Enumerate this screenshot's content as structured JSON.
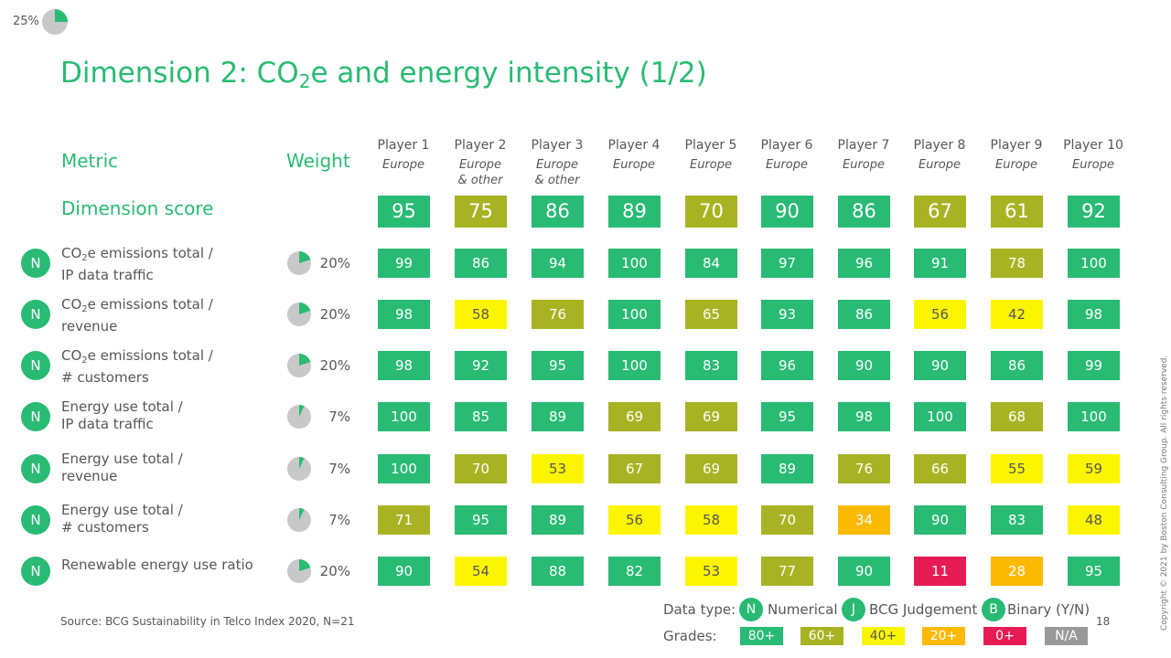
{
  "progress": {
    "label": "25%",
    "value": 0.25
  },
  "title": {
    "prefix": "Dimension 2: CO",
    "sub": "2",
    "suffix": "e and energy intensity (1/2)"
  },
  "headers": {
    "metric": "Metric",
    "weight": "Weight",
    "dimension_score": "Dimension score"
  },
  "players": [
    {
      "name": "Player 1",
      "region": "Europe"
    },
    {
      "name": "Player 2",
      "region": "Europe & other"
    },
    {
      "name": "Player 3",
      "region": "Europe & other"
    },
    {
      "name": "Player 4",
      "region": "Europe"
    },
    {
      "name": "Player 5",
      "region": "Europe"
    },
    {
      "name": "Player 6",
      "region": "Europe"
    },
    {
      "name": "Player 7",
      "region": "Europe"
    },
    {
      "name": "Player 8",
      "region": "Europe"
    },
    {
      "name": "Player 9",
      "region": "Europe"
    },
    {
      "name": "Player 10",
      "region": "Europe"
    }
  ],
  "dimension_scores": [
    "95",
    "75",
    "86",
    "89",
    "70",
    "90",
    "86",
    "67",
    "61",
    "92"
  ],
  "metrics": [
    {
      "type": "N",
      "line1_pre": "CO",
      "line1_sub": "2",
      "line1_post": "e emissions total /",
      "line2": "IP data traffic",
      "weight": "20%",
      "weight_value": 0.2,
      "scores": [
        "99",
        "86",
        "94",
        "100",
        "84",
        "97",
        "96",
        "91",
        "78",
        "100"
      ]
    },
    {
      "type": "N",
      "line1_pre": "CO",
      "line1_sub": "2",
      "line1_post": "e emissions total /",
      "line2": "revenue",
      "weight": "20%",
      "weight_value": 0.2,
      "scores": [
        "98",
        "58",
        "76",
        "100",
        "65",
        "93",
        "86",
        "56",
        "42",
        "98"
      ]
    },
    {
      "type": "N",
      "line1_pre": "CO",
      "line1_sub": "2",
      "line1_post": "e emissions total /",
      "line2": "# customers",
      "weight": "20%",
      "weight_value": 0.2,
      "scores": [
        "98",
        "92",
        "95",
        "100",
        "83",
        "96",
        "90",
        "90",
        "86",
        "99"
      ]
    },
    {
      "type": "N",
      "line1_pre": "Energy use total /",
      "line1_sub": "",
      "line1_post": "",
      "line2": "IP data traffic",
      "weight": "7%",
      "weight_value": 0.07,
      "scores": [
        "100",
        "85",
        "89",
        "69",
        "69",
        "95",
        "98",
        "100",
        "68",
        "100"
      ]
    },
    {
      "type": "N",
      "line1_pre": "Energy use total /",
      "line1_sub": "",
      "line1_post": "",
      "line2": "revenue",
      "weight": "7%",
      "weight_value": 0.07,
      "scores": [
        "100",
        "70",
        "53",
        "67",
        "69",
        "89",
        "76",
        "66",
        "55",
        "59"
      ]
    },
    {
      "type": "N",
      "line1_pre": "Energy use total /",
      "line1_sub": "",
      "line1_post": "",
      "line2": "# customers",
      "weight": "7%",
      "weight_value": 0.07,
      "scores": [
        "71",
        "95",
        "89",
        "56",
        "58",
        "70",
        "34",
        "90",
        "83",
        "48"
      ]
    },
    {
      "type": "N",
      "line1_pre": "Renewable energy use ratio",
      "line1_sub": "",
      "line1_post": "",
      "line2": "",
      "weight": "20%",
      "weight_value": 0.2,
      "scores": [
        "90",
        "54",
        "88",
        "82",
        "53",
        "77",
        "90",
        "11",
        "28",
        "95"
      ]
    }
  ],
  "source": "Source: BCG Sustainability in Telco Index 2020, N=21",
  "legend": {
    "data_type_label": "Data type:",
    "types": [
      {
        "badge": "N",
        "text": "Numerical"
      },
      {
        "badge": "J",
        "text": "BCG Judgement"
      },
      {
        "badge": "B",
        "text": "Binary (Y/N)"
      }
    ],
    "grades_label": "Grades:",
    "grades": [
      "80+",
      "60+",
      "40+",
      "20+",
      "0+",
      "N/A"
    ]
  },
  "page_number": "18",
  "copyright": "Copyright © 2021 by Boston Consulting Group. All rights reserved.",
  "colors": {
    "accent": "#29ba74",
    "grade80": "#29ba74",
    "grade60": "#a8b324",
    "grade40": "#fbf600",
    "grade20": "#fbba00",
    "grade0": "#e71c57",
    "gradeNA": "#999999"
  }
}
